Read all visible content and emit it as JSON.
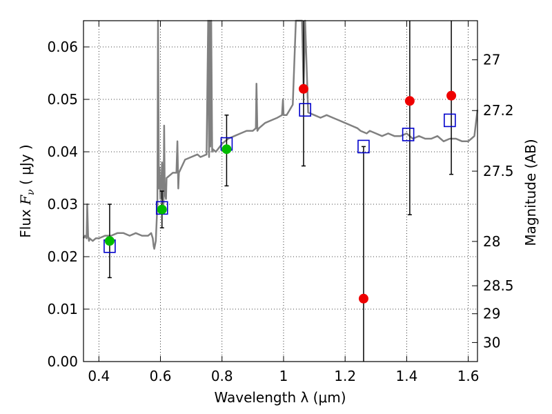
{
  "chart_data": {
    "type": "scatter",
    "xlabel": "Wavelength  λ (μm)",
    "ylabel_prefix": "Flux  ",
    "ylabel_symbol": "F",
    "ylabel_subscript": "ν",
    "ylabel_suffix": "  ( μJy )",
    "y2label": "Magnitude (AB)",
    "xlim": [
      0.35,
      1.63
    ],
    "ylim": [
      0.0,
      0.065
    ],
    "grid": true,
    "x_ticks": [
      0.4,
      0.6,
      0.8,
      1.0,
      1.2,
      1.4,
      1.6
    ],
    "x_tick_labels": [
      "0.4",
      "0.6",
      "0.8",
      "1",
      "1.2",
      "1.4",
      "1.6"
    ],
    "y_ticks": [
      0.0,
      0.01,
      0.02,
      0.03,
      0.04,
      0.05,
      0.06
    ],
    "y_tick_labels": [
      "0.00",
      "0.01",
      "0.02",
      "0.03",
      "0.04",
      "0.05",
      "0.06"
    ],
    "mag_ticks": [
      27,
      27.2,
      27.5,
      28,
      28.5,
      29,
      30
    ],
    "mag_tick_labels": [
      "27",
      "27.2",
      "27.5",
      "28",
      "28.5",
      "29",
      "30"
    ],
    "mag_zero_point": 23.9,
    "colors": {
      "spectrum": "#808080",
      "green_points": "#00bb00",
      "red_points": "#ee0000",
      "model_boxes": "#0000cc",
      "errorbars": "#000000"
    },
    "spectrum": {
      "name": "",
      "x": [
        0.35,
        0.355,
        0.36,
        0.362,
        0.365,
        0.368,
        0.37,
        0.38,
        0.39,
        0.4,
        0.42,
        0.44,
        0.46,
        0.48,
        0.5,
        0.52,
        0.54,
        0.56,
        0.57,
        0.575,
        0.578,
        0.58,
        0.585,
        0.59,
        0.592,
        0.595,
        0.597,
        0.6,
        0.602,
        0.605,
        0.61,
        0.612,
        0.614,
        0.618,
        0.62,
        0.64,
        0.652,
        0.655,
        0.658,
        0.66,
        0.68,
        0.7,
        0.72,
        0.73,
        0.75,
        0.755,
        0.758,
        0.76,
        0.762,
        0.765,
        0.768,
        0.77,
        0.78,
        0.8,
        0.82,
        0.84,
        0.86,
        0.88,
        0.9,
        0.91,
        0.912,
        0.915,
        0.92,
        0.94,
        0.96,
        0.98,
        0.995,
        0.998,
        1.0,
        1.01,
        1.02,
        1.03,
        1.04,
        1.05,
        1.06,
        1.065,
        1.07,
        1.08,
        1.1,
        1.12,
        1.14,
        1.16,
        1.18,
        1.2,
        1.22,
        1.24,
        1.25,
        1.27,
        1.28,
        1.3,
        1.32,
        1.34,
        1.36,
        1.38,
        1.4,
        1.42,
        1.44,
        1.46,
        1.48,
        1.5,
        1.52,
        1.54,
        1.56,
        1.58,
        1.6,
        1.61,
        1.62,
        1.63
      ],
      "y": [
        0.0235,
        0.024,
        0.0235,
        0.03,
        0.024,
        0.023,
        0.0235,
        0.023,
        0.0235,
        0.0235,
        0.024,
        0.024,
        0.0245,
        0.0245,
        0.024,
        0.0245,
        0.024,
        0.024,
        0.0245,
        0.0235,
        0.022,
        0.0215,
        0.023,
        0.03,
        0.065,
        0.033,
        0.037,
        0.031,
        0.032,
        0.038,
        0.03,
        0.045,
        0.032,
        0.031,
        0.035,
        0.036,
        0.036,
        0.042,
        0.033,
        0.036,
        0.0385,
        0.039,
        0.0395,
        0.039,
        0.0395,
        0.065,
        0.039,
        0.065,
        0.041,
        0.065,
        0.04,
        0.0405,
        0.04,
        0.0415,
        0.0425,
        0.043,
        0.0435,
        0.044,
        0.044,
        0.0445,
        0.053,
        0.044,
        0.0445,
        0.0455,
        0.046,
        0.0465,
        0.047,
        0.05,
        0.047,
        0.047,
        0.048,
        0.049,
        0.065,
        0.065,
        0.065,
        0.052,
        0.065,
        0.0475,
        0.047,
        0.0465,
        0.047,
        0.0465,
        0.046,
        0.0455,
        0.045,
        0.0445,
        0.044,
        0.0435,
        0.044,
        0.0435,
        0.043,
        0.0435,
        0.043,
        0.043,
        0.0435,
        0.0425,
        0.043,
        0.0425,
        0.0425,
        0.043,
        0.042,
        0.0425,
        0.0425,
        0.042,
        0.042,
        0.0425,
        0.043,
        0.048
      ]
    },
    "green_points": {
      "name": "",
      "x": [
        0.435,
        0.605,
        0.815
      ],
      "y": [
        0.023,
        0.029,
        0.0405
      ],
      "err_low": [
        0.016,
        0.0255,
        0.0335
      ],
      "err_high": [
        0.03,
        0.0325,
        0.047
      ]
    },
    "red_points": {
      "name": "",
      "x": [
        1.065,
        1.26,
        1.41,
        1.545
      ],
      "y": [
        0.052,
        0.012,
        0.0497,
        0.0507
      ],
      "err_low": [
        0.0373,
        0.0,
        0.028,
        0.0357
      ],
      "err_high": [
        0.065,
        0.041,
        0.065,
        0.065
      ]
    },
    "model_boxes": {
      "name": "",
      "x": [
        0.435,
        0.605,
        0.815,
        1.07,
        1.26,
        1.405,
        1.54
      ],
      "y": [
        0.022,
        0.0293,
        0.0415,
        0.048,
        0.041,
        0.0433,
        0.046
      ]
    }
  }
}
